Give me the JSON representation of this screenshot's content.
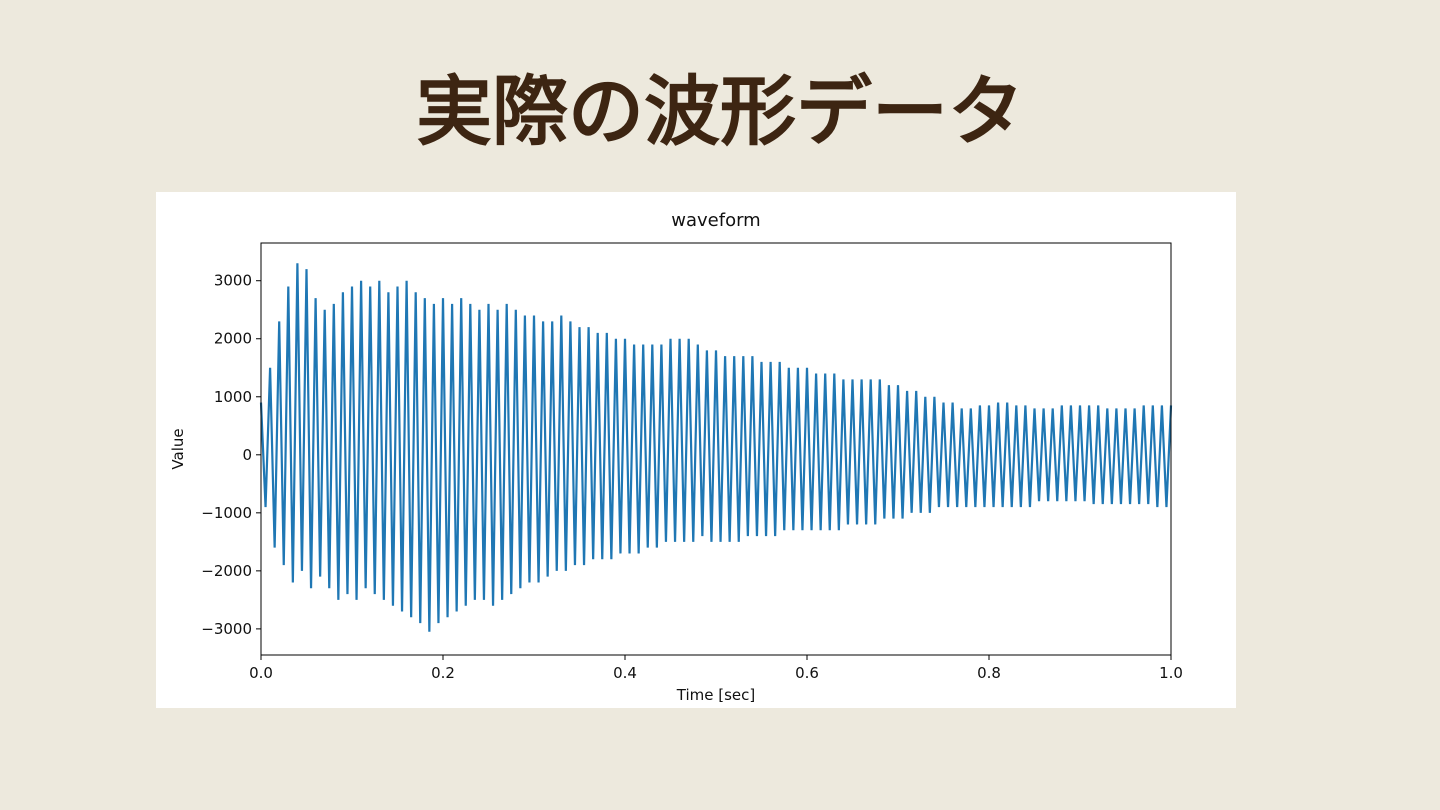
{
  "slide_title": "実際の波形データ",
  "chart_data": {
    "type": "line",
    "title": "waveform",
    "xlabel": "Time [sec]",
    "ylabel": "Value",
    "color": "#1f77b4",
    "xlim": [
      0,
      1
    ],
    "ylim": [
      -3450,
      3650
    ],
    "xticks": [
      {
        "value": 0,
        "label": "0.0"
      },
      0.2,
      0.4,
      0.6,
      0.8,
      {
        "value": 1,
        "label": "1.0"
      }
    ],
    "yticks": [
      {
        "value": -3000,
        "label": "−3000"
      },
      {
        "value": -2000,
        "label": "−2000"
      },
      {
        "value": -1000,
        "label": "−1000"
      },
      0,
      1000,
      2000,
      3000
    ],
    "x": [
      0,
      0.005,
      0.01,
      0.015,
      0.02,
      0.025,
      0.03,
      0.035,
      0.04,
      0.045,
      0.05,
      0.055,
      0.06,
      0.065,
      0.07,
      0.075,
      0.08,
      0.085,
      0.09,
      0.095,
      0.1,
      0.105,
      0.11,
      0.115,
      0.12,
      0.125,
      0.13,
      0.135,
      0.14,
      0.145,
      0.15,
      0.155,
      0.16,
      0.165,
      0.17,
      0.175,
      0.18,
      0.185,
      0.19,
      0.195,
      0.2,
      0.205,
      0.21,
      0.215,
      0.22,
      0.225,
      0.23,
      0.235,
      0.24,
      0.245,
      0.25,
      0.255,
      0.26,
      0.265,
      0.27,
      0.275,
      0.28,
      0.285,
      0.29,
      0.295,
      0.3,
      0.305,
      0.31,
      0.315,
      0.32,
      0.325,
      0.33,
      0.335,
      0.34,
      0.345,
      0.35,
      0.355,
      0.36,
      0.365,
      0.37,
      0.375,
      0.38,
      0.385,
      0.39,
      0.395,
      0.4,
      0.405,
      0.41,
      0.415,
      0.42,
      0.425,
      0.43,
      0.435,
      0.44,
      0.445,
      0.45,
      0.455,
      0.46,
      0.465,
      0.47,
      0.475,
      0.48,
      0.485,
      0.49,
      0.495,
      0.5,
      0.505,
      0.51,
      0.515,
      0.52,
      0.525,
      0.53,
      0.535,
      0.54,
      0.545,
      0.55,
      0.555,
      0.56,
      0.565,
      0.57,
      0.575,
      0.58,
      0.585,
      0.59,
      0.595,
      0.6,
      0.605,
      0.61,
      0.615,
      0.62,
      0.625,
      0.63,
      0.635,
      0.64,
      0.645,
      0.65,
      0.655,
      0.66,
      0.665,
      0.67,
      0.675,
      0.68,
      0.685,
      0.69,
      0.695,
      0.7,
      0.705,
      0.71,
      0.715,
      0.72,
      0.725,
      0.73,
      0.735,
      0.74,
      0.745,
      0.75,
      0.755,
      0.76,
      0.765,
      0.77,
      0.775,
      0.78,
      0.785,
      0.79,
      0.795,
      0.8,
      0.805,
      0.81,
      0.815,
      0.82,
      0.825,
      0.83,
      0.835,
      0.84,
      0.845,
      0.85,
      0.855,
      0.86,
      0.865,
      0.87,
      0.875,
      0.88,
      0.885,
      0.89,
      0.895,
      0.9,
      0.905,
      0.91,
      0.915,
      0.92,
      0.925,
      0.93,
      0.935,
      0.94,
      0.945,
      0.95,
      0.955,
      0.96,
      0.965,
      0.97,
      0.975,
      0.98,
      0.985,
      0.99,
      0.995,
      1
    ],
    "values": [
      900,
      -900,
      1500,
      -1600,
      2300,
      -1900,
      2900,
      -2200,
      3300,
      -2000,
      3200,
      -2300,
      2700,
      -2100,
      2500,
      -2300,
      2600,
      -2500,
      2800,
      -2400,
      2900,
      -2500,
      3000,
      -2300,
      2900,
      -2400,
      3000,
      -2500,
      2800,
      -2600,
      2900,
      -2700,
      3000,
      -2800,
      2800,
      -2900,
      2700,
      -3050,
      2600,
      -2900,
      2700,
      -2800,
      2600,
      -2700,
      2700,
      -2600,
      2600,
      -2500,
      2500,
      -2500,
      2600,
      -2600,
      2500,
      -2500,
      2600,
      -2400,
      2500,
      -2300,
      2400,
      -2200,
      2400,
      -2200,
      2300,
      -2100,
      2300,
      -2000,
      2400,
      -2000,
      2300,
      -1900,
      2200,
      -1900,
      2200,
      -1800,
      2100,
      -1800,
      2100,
      -1800,
      2000,
      -1700,
      2000,
      -1700,
      1900,
      -1700,
      1900,
      -1600,
      1900,
      -1600,
      1900,
      -1500,
      2000,
      -1500,
      2000,
      -1500,
      2000,
      -1500,
      1900,
      -1400,
      1800,
      -1500,
      1800,
      -1500,
      1700,
      -1500,
      1700,
      -1500,
      1700,
      -1400,
      1700,
      -1400,
      1600,
      -1400,
      1600,
      -1400,
      1600,
      -1300,
      1500,
      -1300,
      1500,
      -1300,
      1500,
      -1300,
      1400,
      -1300,
      1400,
      -1300,
      1400,
      -1300,
      1300,
      -1200,
      1300,
      -1200,
      1300,
      -1200,
      1300,
      -1200,
      1300,
      -1100,
      1200,
      -1100,
      1200,
      -1100,
      1100,
      -1000,
      1100,
      -1000,
      1000,
      -1000,
      1000,
      -900,
      900,
      -900,
      900,
      -900,
      800,
      -900,
      800,
      -900,
      850,
      -900,
      850,
      -900,
      900,
      -900,
      900,
      -900,
      850,
      -900,
      850,
      -900,
      800,
      -800,
      800,
      -800,
      800,
      -800,
      850,
      -800,
      850,
      -800,
      850,
      -800,
      850,
      -850,
      850,
      -850,
      800,
      -850,
      800,
      -850,
      800,
      -850,
      800,
      -850,
      850,
      -850,
      850,
      -900,
      850,
      -900,
      850
    ]
  }
}
